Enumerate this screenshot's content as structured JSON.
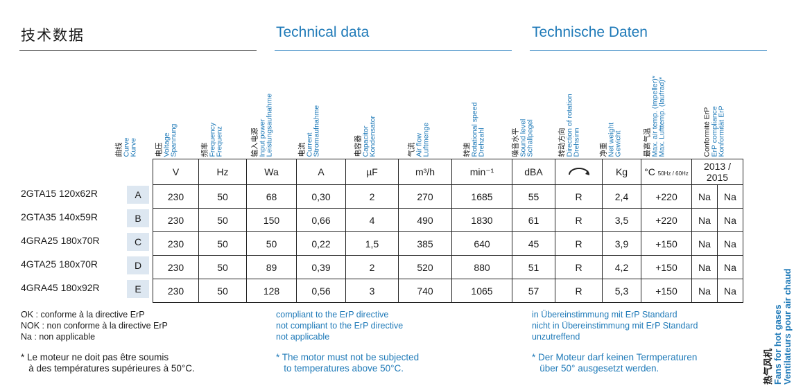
{
  "titles": {
    "zh": "技术数据",
    "en": "Technical data",
    "de": "Technische Daten"
  },
  "headers": [
    {
      "zh": "曲线",
      "en": "Curve",
      "de": "Kurve"
    },
    {
      "zh": "电压",
      "en": "Voltage",
      "de": "Spannung"
    },
    {
      "zh": "频率",
      "en": "Frequency",
      "de": "Frequenz"
    },
    {
      "zh": "输入电源",
      "en": "Input power",
      "de": "Leistungsaufnahme"
    },
    {
      "zh": "电流",
      "en": "Current",
      "de": "Stromaufnahme"
    },
    {
      "zh": "电容器",
      "en": "Capacitor",
      "de": "Kondensator"
    },
    {
      "zh": "气流",
      "en": "Air flow",
      "de": "Luftmenge"
    },
    {
      "zh": "转速",
      "en": "Rotational speed",
      "de": "Drehzahl"
    },
    {
      "zh": "噪音水平",
      "en": "Sound level",
      "de": "Schallpegel"
    },
    {
      "zh": "转动方向",
      "en": "Direction of rotation",
      "de": "Drehsinn"
    },
    {
      "zh": "净重",
      "en": "Net weight",
      "de": "Gewicht"
    },
    {
      "zh": "最高气温",
      "en": "Max. air temp. (impeller)*",
      "de": "Max. Lufttemp. (laufrad)*"
    },
    {
      "zh": "Conformité ErP",
      "en": "ErP compliance",
      "de": "Konformität ErP"
    }
  ],
  "units": [
    "V",
    "Hz",
    "Wa",
    "A",
    "µF",
    "m³/h",
    "min⁻¹",
    "dBA",
    "rotation-icon",
    "Kg",
    "°C",
    "50Hz / 60Hz",
    "2013 / 2015"
  ],
  "rows": [
    {
      "model": "2GTA15 120x62R",
      "curve": "A",
      "v": "230",
      "hz": "50",
      "w": "68",
      "a": "0,30",
      "uf": "2",
      "flow": "270",
      "rpm": "1685",
      "dba": "55",
      "dir": "R",
      "kg": "2,4",
      "temp": "+220",
      "c2013": "Na",
      "c2015": "Na"
    },
    {
      "model": "2GTA35 140x59R",
      "curve": "B",
      "v": "230",
      "hz": "50",
      "w": "150",
      "a": "0,66",
      "uf": "4",
      "flow": "490",
      "rpm": "1830",
      "dba": "61",
      "dir": "R",
      "kg": "3,5",
      "temp": "+220",
      "c2013": "Na",
      "c2015": "Na"
    },
    {
      "model": "4GRA25 180x70R",
      "curve": "C",
      "v": "230",
      "hz": "50",
      "w": "50",
      "a": "0,22",
      "uf": "1,5",
      "flow": "385",
      "rpm": "640",
      "dba": "45",
      "dir": "R",
      "kg": "3,9",
      "temp": "+150",
      "c2013": "Na",
      "c2015": "Na"
    },
    {
      "model": "4GTA25 180x70R",
      "curve": "D",
      "v": "230",
      "hz": "50",
      "w": "89",
      "a": "0,39",
      "uf": "2",
      "flow": "520",
      "rpm": "880",
      "dba": "51",
      "dir": "R",
      "kg": "4,2",
      "temp": "+150",
      "c2013": "Na",
      "c2015": "Na"
    },
    {
      "model": "4GRA45 180x92R",
      "curve": "E",
      "v": "230",
      "hz": "50",
      "w": "128",
      "a": "0,56",
      "uf": "3",
      "flow": "740",
      "rpm": "1065",
      "dba": "57",
      "dir": "R",
      "kg": "5,3",
      "temp": "+150",
      "c2013": "Na",
      "c2015": "Na"
    }
  ],
  "notes": {
    "fr": [
      "OK :   conforme à la directive ErP",
      "NOK : non conforme à la directive ErP",
      "Na :    non applicable"
    ],
    "en": [
      "compliant to the ErP directive",
      "not compliant to the ErP directive",
      "not applicable"
    ],
    "de": [
      "in Übereinstimmung mit ErP Standard",
      "nicht in Übereinstimmung mit ErP Standard",
      "unzutreffend"
    ]
  },
  "footnotes": {
    "fr": [
      "* Le moteur ne doit pas être soumis",
      "   à des températures supérieures à 50°C."
    ],
    "en": [
      "* The motor must not be subjected",
      "   to temperatures above 50°C."
    ],
    "de": [
      "* Der Moteur darf keinen Termperaturen",
      "   über 50° ausgesetzt werden."
    ]
  },
  "side_label": {
    "zh": "热气风机",
    "en": "Fans for hot gases",
    "fr": "Ventilateurs pour air chaud"
  },
  "colors": {
    "accent": "#1f7ab8",
    "curve_bg": "#dde7f1"
  }
}
